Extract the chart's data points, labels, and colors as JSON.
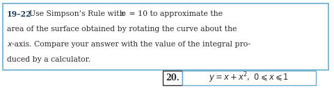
{
  "header_bold": "19–22",
  "line1_normal": "Use Simpson’s Rule with ",
  "line1_italic_n": "n",
  "line1_end": " = 10 to approximate the",
  "line2": "area of the surface obtained by rotating the curve about the",
  "line3_italic_x": "x",
  "line3_end": "-axis. Compare your answer with the value of the integral pro-",
  "line4": "duced by a calculator.",
  "problem_number": "20.",
  "formula": "$y = x + x^2,\\ 0 \\leqslant x \\leqslant 1$",
  "background_color": "#ffffff",
  "border_color": "#6aaccc",
  "text_color": "#2b2b2b",
  "bold_color": "#1a3a5c",
  "figsize": [
    4.8,
    1.27
  ],
  "dpi": 100,
  "fontsize": 7.8
}
